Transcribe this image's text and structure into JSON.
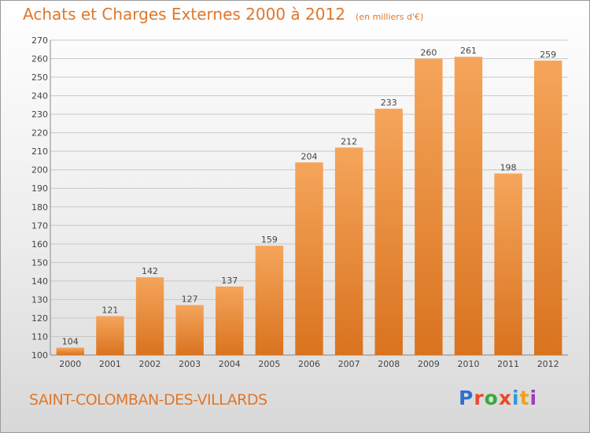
{
  "header": {
    "title": "Achats et Charges Externes 2000 à 2012",
    "subtitle": "(en milliers d'€)"
  },
  "footer": {
    "commune": "SAINT-COLOMBAN-DES-VILLARDS",
    "brand": "Proxiti",
    "brand_colors": [
      "#2f6fd0",
      "#e94b2b",
      "#3aa83a",
      "#e94b2b",
      "#2f9ad6",
      "#f0a020",
      "#9b3dbf"
    ]
  },
  "colors": {
    "bar_light": "#f5a55b",
    "bar_dark": "#d9731f",
    "accent": "#e0772a",
    "grid": "#c8c8c8"
  },
  "chart_data": {
    "type": "bar",
    "title": "Achats et Charges Externes 2000 à 2012",
    "subtitle": "(en milliers d'€)",
    "categories": [
      "2000",
      "2001",
      "2002",
      "2003",
      "2004",
      "2005",
      "2006",
      "2007",
      "2008",
      "2009",
      "2010",
      "2011",
      "2012"
    ],
    "values": [
      104,
      121,
      142,
      127,
      137,
      159,
      204,
      212,
      233,
      260,
      261,
      198,
      259
    ],
    "ylim": [
      100,
      270
    ],
    "ytick_step": 10,
    "grid": true,
    "data_labels": true,
    "xlabel": "",
    "ylabel": ""
  }
}
